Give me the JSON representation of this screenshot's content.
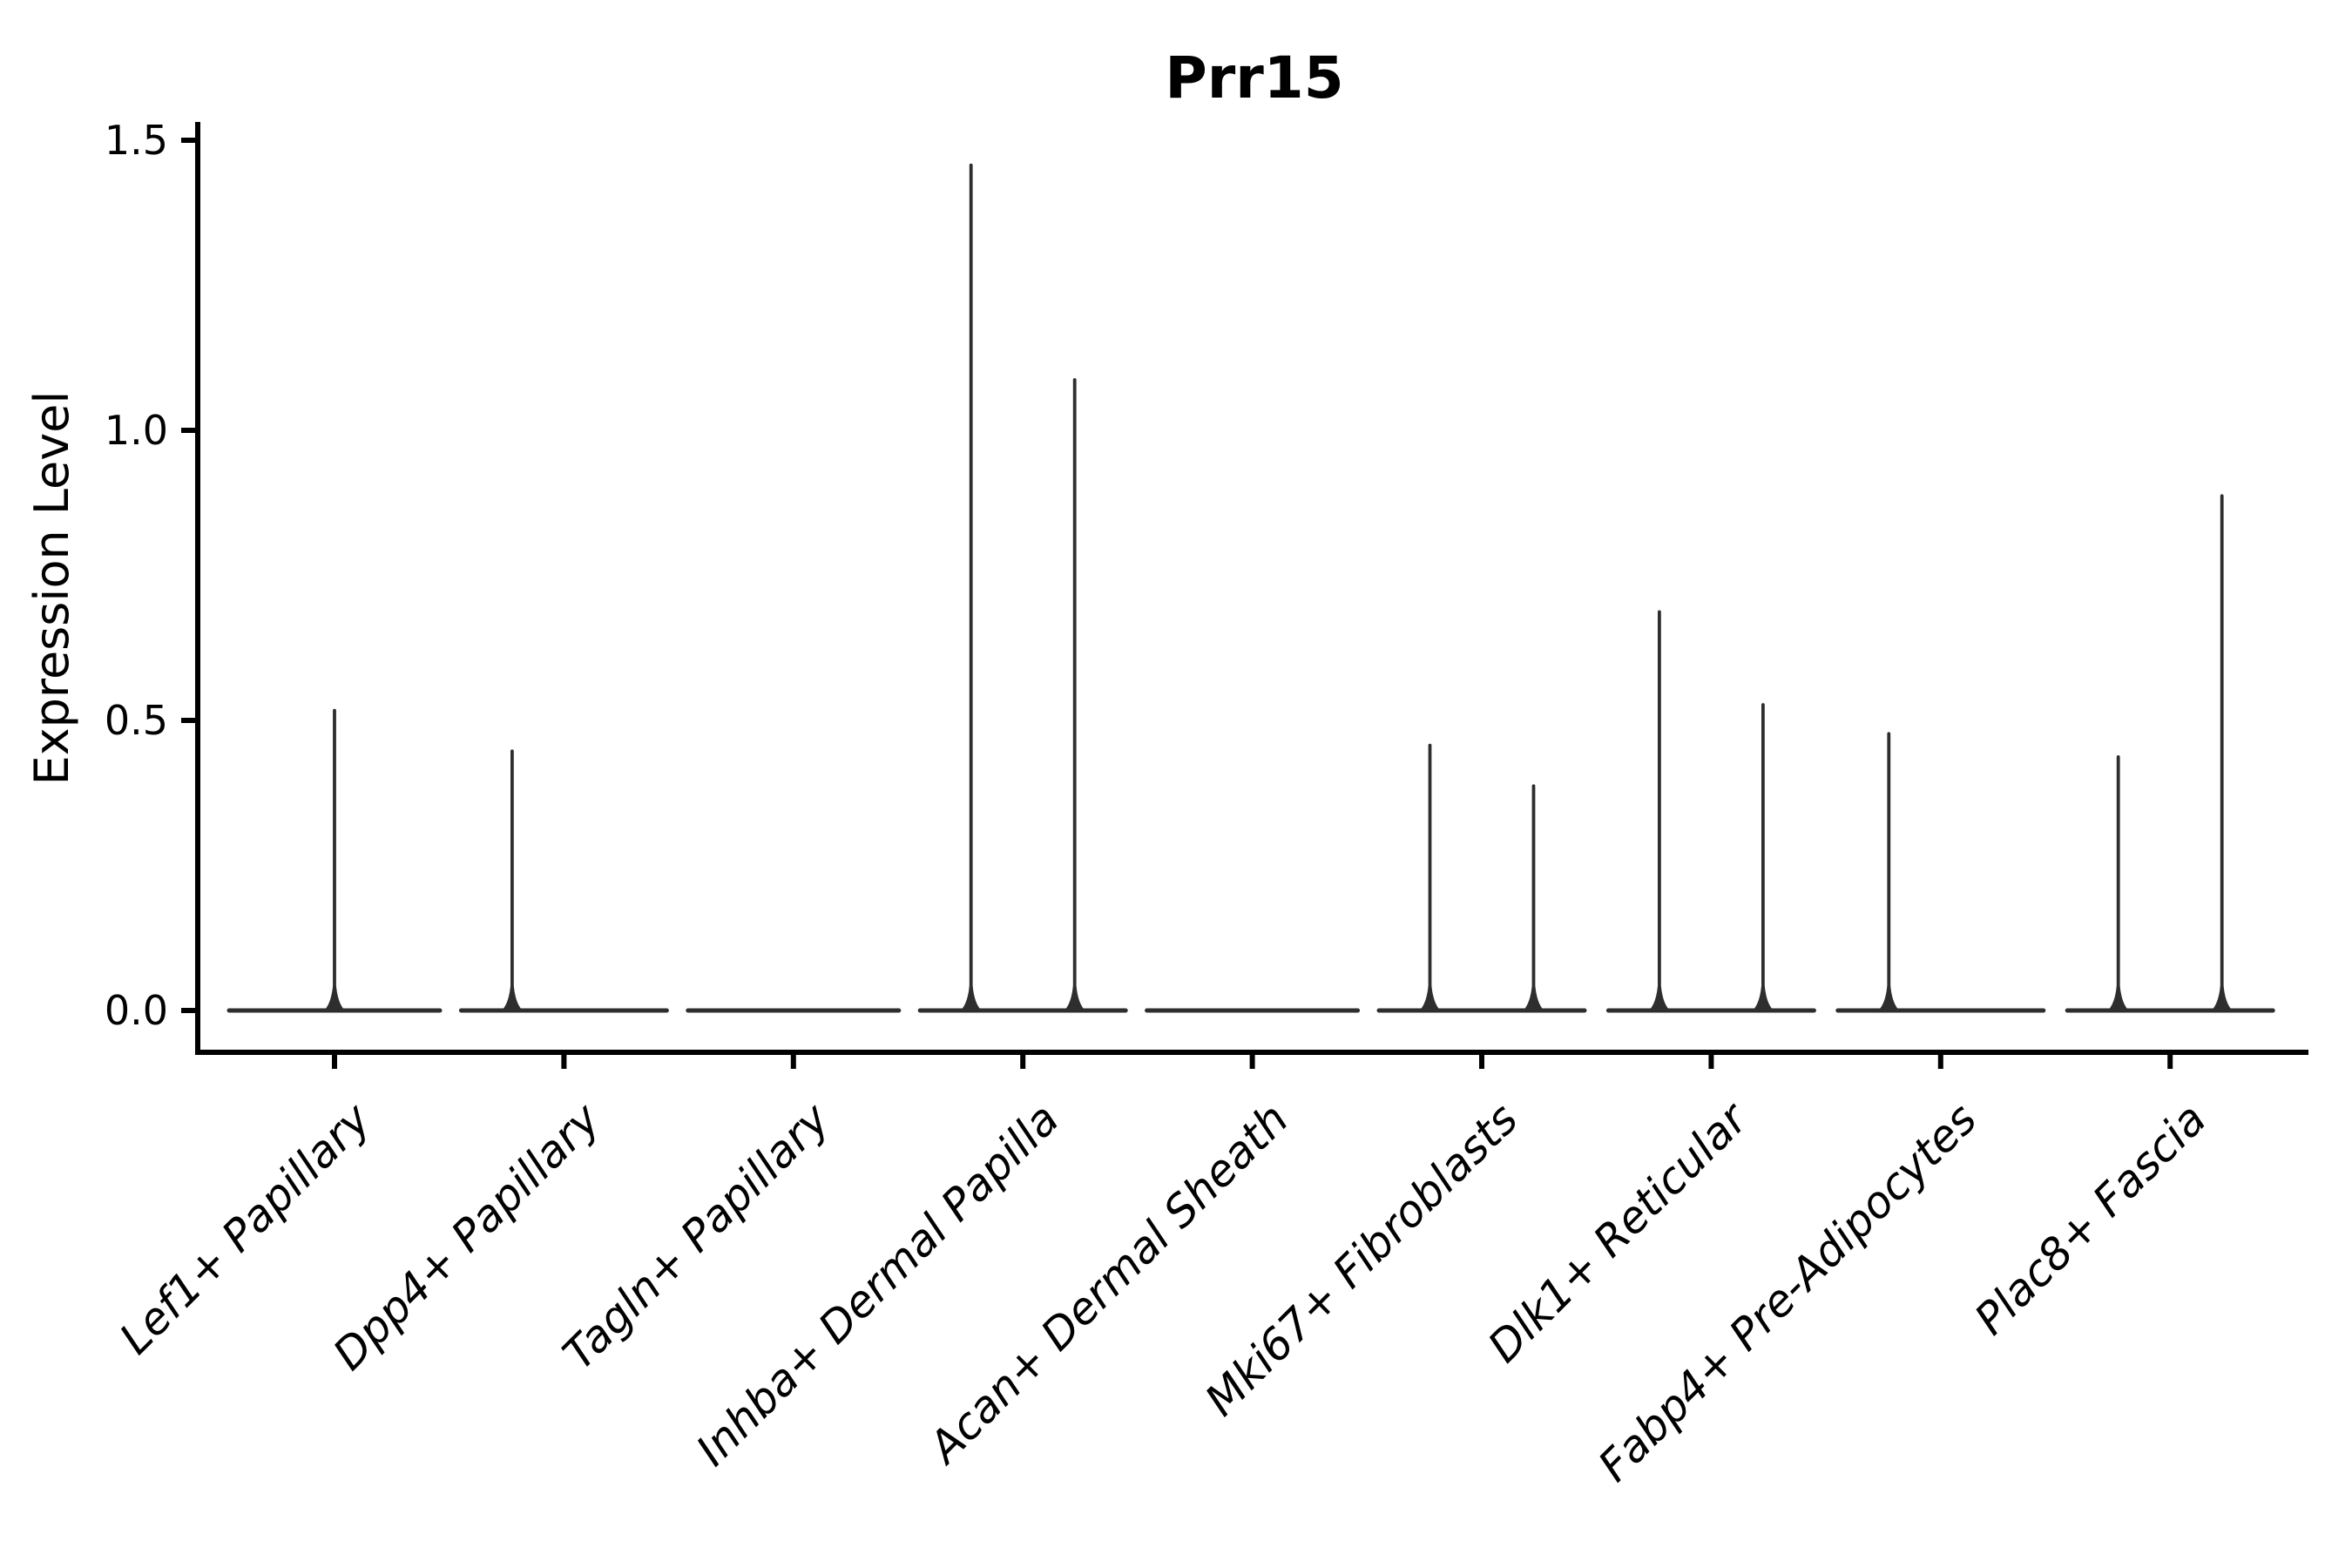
{
  "chart_data": {
    "type": "violin",
    "title": "Prr15",
    "ylabel": "Expression Level",
    "xlabel": "",
    "ylim": [
      0,
      1.5
    ],
    "yticks": [
      0.0,
      0.5,
      1.0,
      1.5
    ],
    "ytick_labels": [
      "0.0",
      "0.5",
      "1.0",
      "1.5"
    ],
    "grid": false,
    "legend_position": "none",
    "categories": [
      "Lef1+ Papillary",
      "Dpp4+ Papillary",
      "Tagln+ Papillary",
      "Inhba+ Dermal Papilla",
      "Acan+ Dermal Sheath",
      "Mki67+ Fibroblasts",
      "Dlk1+ Reticular",
      "Fabp4+ Pre-Adipocytes",
      "Plac8+ Fascia"
    ],
    "violins": [
      {
        "category": "Lef1+ Papillary",
        "shapes": [
          {
            "slot": "center",
            "max": 0.52
          }
        ]
      },
      {
        "category": "Dpp4+ Papillary",
        "shapes": [
          {
            "slot": "left",
            "max": 0.45
          },
          {
            "slot": "right",
            "max": 0
          }
        ]
      },
      {
        "category": "Tagln+ Papillary",
        "shapes": [
          {
            "slot": "center",
            "max": 0
          }
        ]
      },
      {
        "category": "Inhba+ Dermal Papilla",
        "shapes": [
          {
            "slot": "left",
            "max": 1.46
          },
          {
            "slot": "right",
            "max": 1.09
          }
        ]
      },
      {
        "category": "Acan+ Dermal Sheath",
        "shapes": [
          {
            "slot": "center",
            "max": 0
          }
        ]
      },
      {
        "category": "Mki67+ Fibroblasts",
        "shapes": [
          {
            "slot": "left",
            "max": 0.46
          },
          {
            "slot": "right",
            "max": 0.39
          }
        ]
      },
      {
        "category": "Dlk1+ Reticular",
        "shapes": [
          {
            "slot": "left",
            "max": 0.69
          },
          {
            "slot": "right",
            "max": 0.53
          }
        ]
      },
      {
        "category": "Fabp4+ Pre-Adipocytes",
        "shapes": [
          {
            "slot": "left",
            "max": 0.48
          },
          {
            "slot": "right",
            "max": 0
          }
        ]
      },
      {
        "category": "Plac8+ Fascia",
        "shapes": [
          {
            "slot": "left",
            "max": 0.44
          },
          {
            "slot": "right",
            "max": 0.89
          }
        ]
      }
    ],
    "colors": {
      "violin_stroke": "#2e2e2e",
      "axis": "#000000",
      "text": "#000000",
      "background": "#ffffff"
    }
  }
}
